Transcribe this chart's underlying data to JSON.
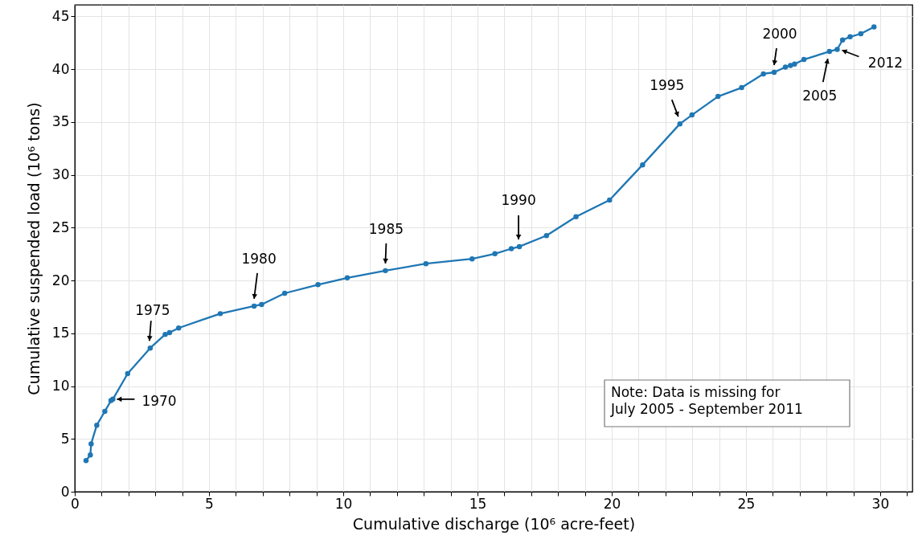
{
  "chart_data": {
    "type": "line",
    "xlabel": "Cumulative discharge (10⁶ acre-feet)",
    "ylabel": "Cumulative suspended load (10⁶ tons)",
    "x": [
      0.42,
      0.58,
      0.61,
      0.82,
      1.12,
      1.35,
      1.42,
      1.97,
      2.81,
      3.37,
      3.53,
      3.87,
      5.42,
      6.68,
      6.96,
      7.82,
      9.06,
      10.15,
      11.57,
      13.08,
      14.8,
      15.65,
      16.26,
      16.56,
      17.57,
      18.67,
      19.92,
      21.15,
      22.54,
      22.99,
      23.96,
      24.84,
      25.65,
      26.05,
      26.47,
      26.66,
      26.81,
      27.16,
      28.11,
      28.4,
      28.6,
      28.88,
      29.28,
      29.77
    ],
    "series": [
      {
        "color": "#1f77b4",
        "values": [
          2.95,
          3.48,
          4.53,
          6.3,
          7.61,
          8.63,
          8.76,
          11.18,
          13.6,
          14.9,
          15.06,
          15.5,
          16.86,
          17.58,
          17.73,
          18.79,
          19.6,
          20.25,
          20.93,
          21.59,
          22.05,
          22.53,
          23.01,
          23.21,
          24.25,
          26.03,
          27.62,
          30.95,
          34.83,
          35.67,
          37.42,
          38.26,
          39.56,
          39.71,
          40.21,
          40.36,
          40.49,
          40.92,
          41.68,
          41.88,
          42.77,
          43.07,
          43.36,
          44.01
        ]
      }
    ],
    "xlim": [
      0,
      31.2
    ],
    "ylim": [
      0,
      46.1
    ],
    "xticks": [
      0,
      {
        "value": 1,
        "label": null
      },
      {
        "value": 2,
        "label": null
      },
      {
        "value": 3,
        "label": null
      },
      {
        "value": 4,
        "label": null
      },
      5,
      {
        "value": 6,
        "label": null
      },
      {
        "value": 7,
        "label": null
      },
      {
        "value": 8,
        "label": null
      },
      {
        "value": 9,
        "label": null
      },
      10,
      {
        "value": 11,
        "label": null
      },
      {
        "value": 12,
        "label": null
      },
      {
        "value": 13,
        "label": null
      },
      {
        "value": 14,
        "label": null
      },
      15,
      {
        "value": 16,
        "label": null
      },
      {
        "value": 17,
        "label": null
      },
      {
        "value": 18,
        "label": null
      },
      {
        "value": 19,
        "label": null
      },
      20,
      {
        "value": 21,
        "label": null
      },
      {
        "value": 22,
        "label": null
      },
      {
        "value": 23,
        "label": null
      },
      {
        "value": 24,
        "label": null
      },
      25,
      {
        "value": 26,
        "label": null
      },
      {
        "value": 27,
        "label": null
      },
      {
        "value": 28,
        "label": null
      },
      {
        "value": 29,
        "label": null
      },
      30,
      {
        "value": 31,
        "label": null
      }
    ],
    "yticks": [
      0,
      5,
      10,
      15,
      20,
      25,
      30,
      35,
      40,
      45
    ],
    "grid": true,
    "marker": "circle",
    "line_style": "solid",
    "annotations": [
      {
        "text": "1970",
        "x": 1.42,
        "y": 8.76
      },
      {
        "text": "1975",
        "x": 2.81,
        "y": 13.6
      },
      {
        "text": "1980",
        "x": 6.68,
        "y": 17.58
      },
      {
        "text": "1985",
        "x": 11.57,
        "y": 20.93
      },
      {
        "text": "1990",
        "x": 16.56,
        "y": 23.21
      },
      {
        "text": "1995",
        "x": 22.54,
        "y": 34.83
      },
      {
        "text": "2000",
        "x": 26.05,
        "y": 39.71
      },
      {
        "text": "2005",
        "x": 28.11,
        "y": 41.68
      },
      {
        "text": "2012",
        "x": 28.4,
        "y": 41.88
      },
      "Note: Data is missing for\nJuly 2005 - September 2011"
    ]
  }
}
